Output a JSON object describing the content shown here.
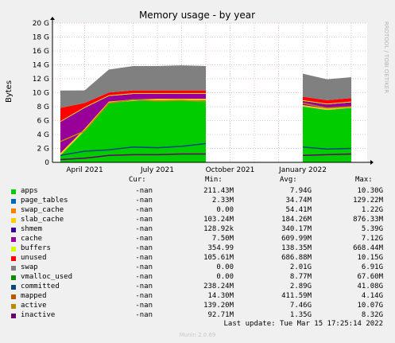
{
  "chart_data": {
    "type": "area",
    "title": "Memory usage - by year",
    "ylabel": "Bytes",
    "watermark": "RRDTOOL / TOBI OETIKER",
    "y_ticks": [
      "0",
      "2 G",
      "4 G",
      "6 G",
      "8 G",
      "10 G",
      "12 G",
      "14 G",
      "16 G",
      "18 G",
      "20 G"
    ],
    "ylim": [
      0,
      20
    ],
    "x_ticks": [
      {
        "label": "April 2021",
        "month": "2021-04"
      },
      {
        "label": "July 2021",
        "month": "2021-07"
      },
      {
        "label": "October 2021",
        "month": "2021-10"
      },
      {
        "label": "January 2022",
        "month": "2022-01"
      }
    ],
    "x_months": [
      "2021-03",
      "2021-04",
      "2021-05",
      "2021-06",
      "2021-07",
      "2021-08",
      "2021-09",
      "2021-10",
      "2021-11",
      "2021-12",
      "2022-01",
      "2022-02",
      "2022-03"
    ],
    "stack_order": [
      "apps",
      "page_tables",
      "swap_cache",
      "slab_cache",
      "cache",
      "buffers",
      "unused"
    ],
    "stack_samples": [
      {
        "month": "2021-03",
        "apps": 1.0,
        "page_tables": 0.02,
        "swap_cache": 0.0,
        "slab_cache": 0.3,
        "cache": 4.5,
        "buffers": 0.1,
        "unused": 1.9
      },
      {
        "month": "2021-04",
        "apps": 4.5,
        "page_tables": 0.03,
        "swap_cache": 0.0,
        "slab_cache": 0.3,
        "cache": 3.0,
        "buffers": 0.1,
        "unused": 0.6
      },
      {
        "month": "2021-05",
        "apps": 8.5,
        "page_tables": 0.03,
        "swap_cache": 0.0,
        "slab_cache": 0.2,
        "cache": 0.8,
        "buffers": 0.1,
        "unused": 0.4
      },
      {
        "month": "2021-06",
        "apps": 8.8,
        "page_tables": 0.03,
        "swap_cache": 0.0,
        "slab_cache": 0.2,
        "cache": 0.8,
        "buffers": 0.1,
        "unused": 0.4
      },
      {
        "month": "2021-07",
        "apps": 8.9,
        "page_tables": 0.03,
        "swap_cache": 0.0,
        "slab_cache": 0.2,
        "cache": 0.7,
        "buffers": 0.1,
        "unused": 0.4
      },
      {
        "month": "2021-08",
        "apps": 8.9,
        "page_tables": 0.03,
        "swap_cache": 0.0,
        "slab_cache": 0.2,
        "cache": 0.7,
        "buffers": 0.1,
        "unused": 0.4
      },
      {
        "month": "2021-09",
        "apps": 8.9,
        "page_tables": 0.03,
        "swap_cache": 0.0,
        "slab_cache": 0.2,
        "cache": 0.7,
        "buffers": 0.1,
        "unused": 0.4
      },
      {
        "month": "2022-01",
        "apps": 8.0,
        "page_tables": 0.03,
        "swap_cache": 0.0,
        "slab_cache": 0.2,
        "cache": 0.6,
        "buffers": 0.1,
        "unused": 0.5
      },
      {
        "month": "2022-02",
        "apps": 7.5,
        "page_tables": 0.03,
        "swap_cache": 0.0,
        "slab_cache": 0.2,
        "cache": 0.6,
        "buffers": 0.1,
        "unused": 0.5
      },
      {
        "month": "2022-03",
        "apps": 7.8,
        "page_tables": 0.03,
        "swap_cache": 0.0,
        "slab_cache": 0.2,
        "cache": 0.6,
        "buffers": 0.1,
        "unused": 0.5
      }
    ],
    "swap_band": [
      {
        "month": "2021-03",
        "value": 2.5
      },
      {
        "month": "2021-04",
        "value": 1.8
      },
      {
        "month": "2021-05",
        "value": 3.3
      },
      {
        "month": "2021-06",
        "value": 3.5
      },
      {
        "month": "2021-07",
        "value": 3.5
      },
      {
        "month": "2021-08",
        "value": 3.6
      },
      {
        "month": "2021-09",
        "value": 3.5
      },
      {
        "month": "2022-01",
        "value": 3.3
      },
      {
        "month": "2022-02",
        "value": 3.0
      },
      {
        "month": "2022-03",
        "value": 3.0
      }
    ],
    "committed_line": [
      {
        "month": "2021-03",
        "value": 1.0
      },
      {
        "month": "2021-04",
        "value": 1.6
      },
      {
        "month": "2021-05",
        "value": 1.8
      },
      {
        "month": "2021-06",
        "value": 2.2
      },
      {
        "month": "2021-07",
        "value": 2.1
      },
      {
        "month": "2021-08",
        "value": 2.3
      },
      {
        "month": "2021-09",
        "value": 2.7
      },
      {
        "month": "2022-01",
        "value": 2.2
      },
      {
        "month": "2022-02",
        "value": 1.9
      },
      {
        "month": "2022-03",
        "value": 2.0
      }
    ],
    "active_line": [
      {
        "month": "2021-03",
        "value": 3.0
      },
      {
        "month": "2021-04",
        "value": 4.5
      },
      {
        "month": "2021-05",
        "value": 8.5
      },
      {
        "month": "2021-06",
        "value": 9.0
      },
      {
        "month": "2021-07",
        "value": 8.8
      },
      {
        "month": "2021-08",
        "value": 8.9
      },
      {
        "month": "2021-09",
        "value": 8.7
      },
      {
        "month": "2022-01",
        "value": 8.5
      },
      {
        "month": "2022-02",
        "value": 7.8
      },
      {
        "month": "2022-03",
        "value": 8.0
      }
    ],
    "inactive_line": [
      {
        "month": "2021-03",
        "value": 0.4
      },
      {
        "month": "2021-04",
        "value": 0.6
      },
      {
        "month": "2021-05",
        "value": 1.0
      },
      {
        "month": "2021-06",
        "value": 1.1
      },
      {
        "month": "2021-07",
        "value": 1.1
      },
      {
        "month": "2021-08",
        "value": 1.2
      },
      {
        "month": "2021-09",
        "value": 1.2
      },
      {
        "month": "2022-01",
        "value": 1.0
      },
      {
        "month": "2022-02",
        "value": 1.1
      },
      {
        "month": "2022-03",
        "value": 1.2
      }
    ],
    "legend_headers": {
      "cur": "Cur:",
      "min": "Min:",
      "avg": "Avg:",
      "max": "Max:"
    },
    "series": [
      {
        "name": "apps",
        "color": "#00cc00",
        "cur": "-nan",
        "min": "211.43M",
        "avg": "7.94G",
        "max": "10.30G"
      },
      {
        "name": "page_tables",
        "color": "#0066b3",
        "cur": "-nan",
        "min": "2.33M",
        "avg": "34.74M",
        "max": "129.22M"
      },
      {
        "name": "swap_cache",
        "color": "#ff8000",
        "cur": "-nan",
        "min": "0.00",
        "avg": "54.41M",
        "max": "1.22G"
      },
      {
        "name": "slab_cache",
        "color": "#ffcc00",
        "cur": "-nan",
        "min": "103.24M",
        "avg": "184.26M",
        "max": "876.33M"
      },
      {
        "name": "shmem",
        "color": "#330099",
        "cur": "-nan",
        "min": "128.92k",
        "avg": "340.17M",
        "max": "5.39G"
      },
      {
        "name": "cache",
        "color": "#990099",
        "cur": "-nan",
        "min": "7.50M",
        "avg": "609.99M",
        "max": "7.12G"
      },
      {
        "name": "buffers",
        "color": "#ccff00",
        "cur": "-nan",
        "min": "354.99",
        "avg": "138.35M",
        "max": "668.44M"
      },
      {
        "name": "unused",
        "color": "#ff0000",
        "cur": "-nan",
        "min": "105.61M",
        "avg": "686.88M",
        "max": "10.15G"
      },
      {
        "name": "swap",
        "color": "#808080",
        "cur": "-nan",
        "min": "0.00",
        "avg": "2.01G",
        "max": "6.91G"
      },
      {
        "name": "vmalloc_used",
        "color": "#008f00",
        "cur": "-nan",
        "min": "0.00",
        "avg": "8.77M",
        "max": "67.60M"
      },
      {
        "name": "committed",
        "color": "#00487d",
        "cur": "-nan",
        "min": "238.24M",
        "avg": "2.89G",
        "max": "41.08G"
      },
      {
        "name": "mapped",
        "color": "#b35a00",
        "cur": "-nan",
        "min": "14.30M",
        "avg": "411.59M",
        "max": "4.14G"
      },
      {
        "name": "active",
        "color": "#b38f00",
        "cur": "-nan",
        "min": "139.20M",
        "avg": "7.46G",
        "max": "10.07G"
      },
      {
        "name": "inactive",
        "color": "#6b006b",
        "cur": "-nan",
        "min": "92.71M",
        "avg": "1.35G",
        "max": "8.32G"
      }
    ],
    "footer": "Last update: Tue Mar 15 17:25:14 2022",
    "version": "Munin 2.0.69"
  }
}
